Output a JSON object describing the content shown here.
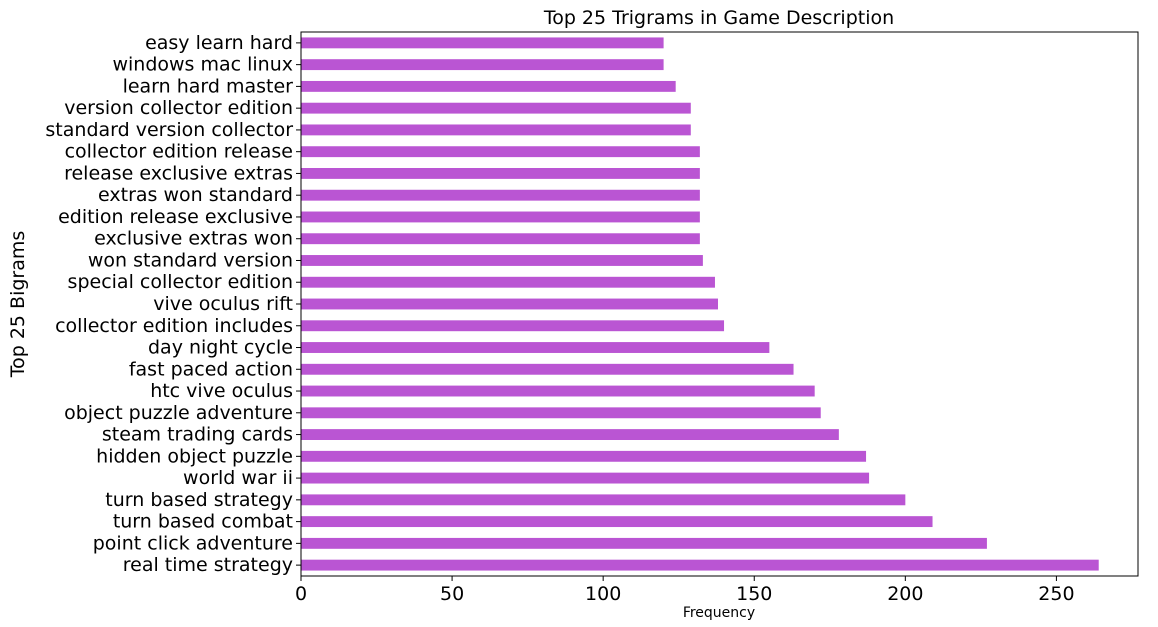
{
  "chart_data": {
    "type": "bar",
    "orientation": "horizontal",
    "title": "Top 25 Trigrams in Game Description",
    "xlabel": "Frequency",
    "ylabel": "Top 25 Bigrams",
    "xlim": [
      0,
      277
    ],
    "xticks": [
      0,
      50,
      100,
      150,
      200,
      250
    ],
    "bar_color": "#ba55d3",
    "grid": false,
    "categories": [
      "easy learn hard",
      "windows mac linux",
      "learn hard master",
      "version collector edition",
      "standard version collector",
      "collector edition release",
      "release exclusive extras",
      "extras won standard",
      "edition release exclusive",
      "exclusive extras won",
      "won standard version",
      "special collector edition",
      "vive oculus rift",
      "collector edition includes",
      "day night cycle",
      "fast paced action",
      "htc vive oculus",
      "object puzzle adventure",
      "steam trading cards",
      "hidden object puzzle",
      "world war ii",
      "turn based strategy",
      "turn based combat",
      "point click adventure",
      "real time strategy"
    ],
    "values": [
      120,
      120,
      124,
      129,
      129,
      132,
      132,
      132,
      132,
      132,
      133,
      137,
      138,
      140,
      155,
      163,
      170,
      172,
      178,
      187,
      188,
      200,
      209,
      227,
      264
    ]
  }
}
